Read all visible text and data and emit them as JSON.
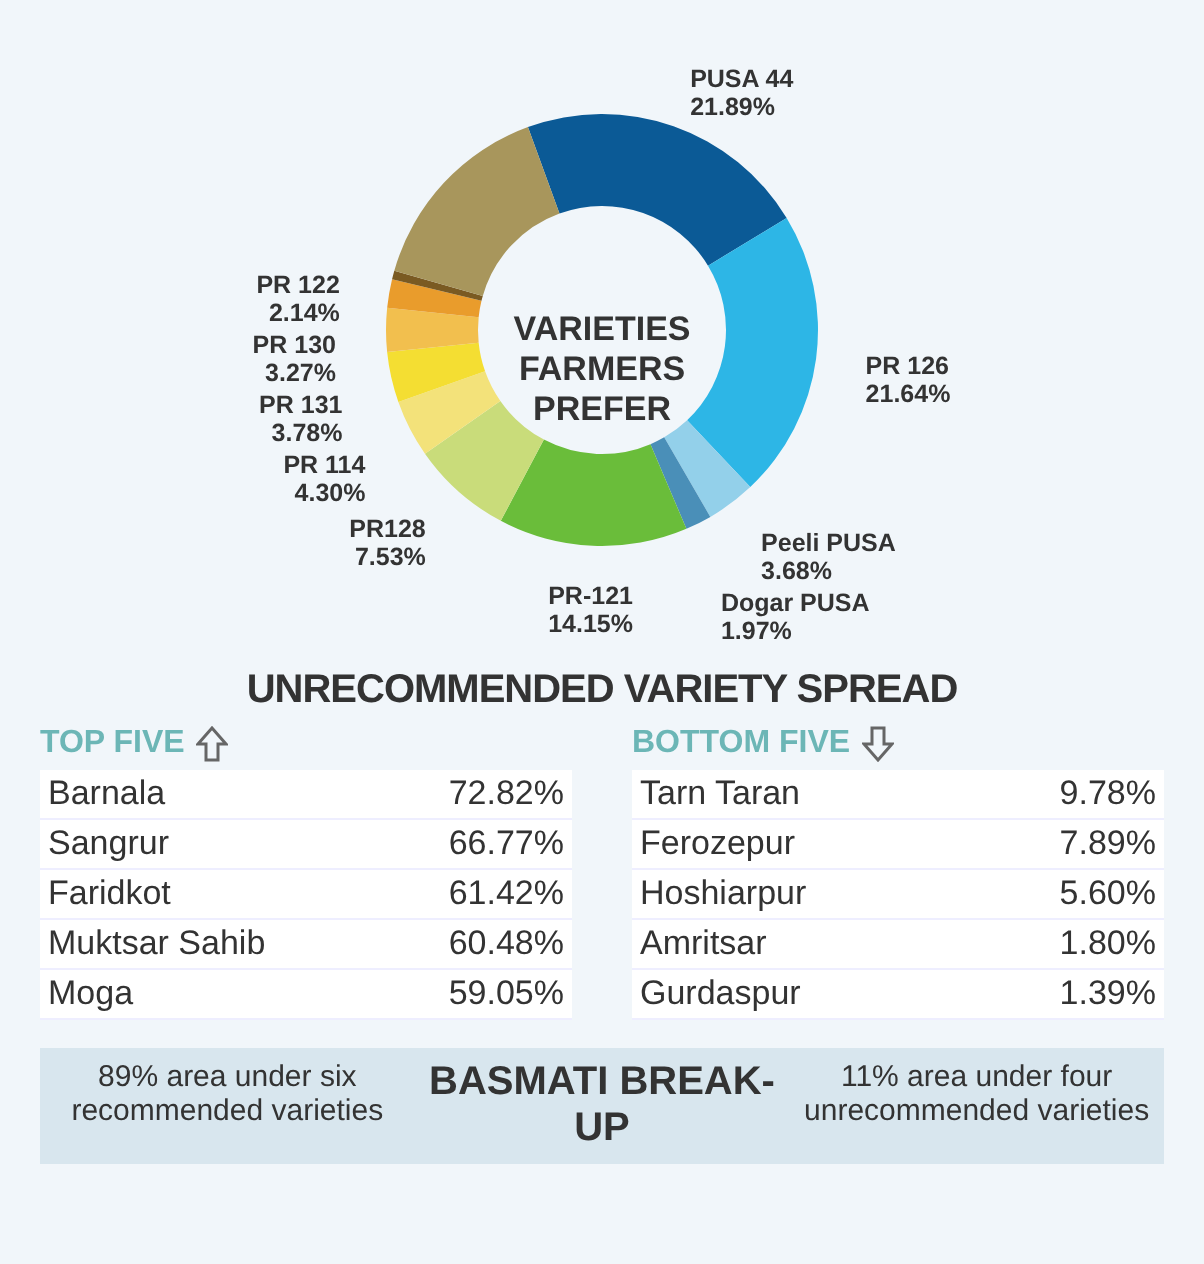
{
  "chart_data": {
    "type": "donut",
    "title": "VARIETIES FARMERS PREFER",
    "categories": [
      "PUSA 44",
      "PR 126",
      "Peeli PUSA",
      "Dogar PUSA",
      "PR-121",
      "PR128",
      "PR 114",
      "PR 131",
      "PR 130",
      "PR 122",
      null,
      null
    ],
    "values": [
      21.89,
      21.64,
      3.68,
      1.97,
      14.15,
      7.53,
      4.3,
      3.78,
      3.27,
      2.14,
      0.65,
      15.0
    ],
    "value_labels": [
      "21.89%",
      "21.64%",
      "3.68%",
      "1.97%",
      "14.15%",
      "7.53%",
      "4.30%",
      "3.78%",
      "3.27%",
      "2.14%",
      null,
      null
    ],
    "colors": [
      "#0b5a96",
      "#2db6e6",
      "#93d0ea",
      "#4a8fb8",
      "#6abd3a",
      "#c9dc7a",
      "#f3e27a",
      "#f4de32",
      "#f2bf4e",
      "#e99c2c",
      "#7a5a22",
      "#a8965c"
    ],
    "annotations": [
      "UNRECOMMENDED VARIETY SPREAD",
      "TOP FIVE",
      "BOTTOM FIVE",
      "Barnala",
      "72.82%",
      "Sangrur",
      "66.77%",
      "Faridkot",
      "61.42%",
      "Muktsar Sahib",
      "60.48%",
      "Moga",
      "59.05%",
      "Tarn Taran",
      "9.78%",
      "Ferozepur",
      "7.89%",
      "Hoshiarpur",
      "5.60%",
      "Amritsar",
      "1.80%",
      "Gurdaspur",
      "1.39%",
      "89% area under six recommended varieties",
      "BASMATI BREAK-UP",
      "11% area under four unrecommended varieties"
    ]
  }
}
